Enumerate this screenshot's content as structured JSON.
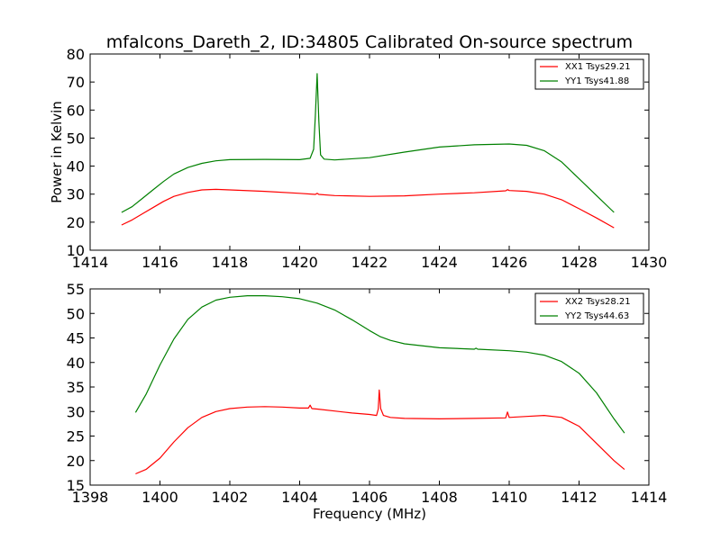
{
  "figure": {
    "title": "mfalcons_Dareth_2, ID:34805 Calibrated On-source spectrum"
  },
  "chart_data": [
    {
      "type": "line",
      "xlabel": "",
      "ylabel": "Power in Kelvin",
      "xlim": [
        1414,
        1430
      ],
      "ylim": [
        10,
        80
      ],
      "xticks": [
        "1414",
        "1416",
        "1418",
        "1420",
        "1422",
        "1424",
        "1426",
        "1428",
        "1430"
      ],
      "yticks": [
        "10",
        "20",
        "30",
        "40",
        "50",
        "60",
        "70",
        "80"
      ],
      "legend": "top-right",
      "grid": false,
      "series": [
        {
          "name": "XX1 Tsys29.21",
          "color": "#ff0000",
          "points": [
            [
              1414.9,
              19
            ],
            [
              1415.2,
              20.8
            ],
            [
              1415.5,
              23
            ],
            [
              1415.8,
              25.2
            ],
            [
              1416.1,
              27.4
            ],
            [
              1416.4,
              29.2
            ],
            [
              1416.8,
              30.6
            ],
            [
              1417.2,
              31.5
            ],
            [
              1417.6,
              31.7
            ],
            [
              1418,
              31.5
            ],
            [
              1419,
              31
            ],
            [
              1420,
              30.3
            ],
            [
              1420.45,
              29.9
            ],
            [
              1420.5,
              30.3
            ],
            [
              1420.55,
              29.9
            ],
            [
              1421,
              29.5
            ],
            [
              1422,
              29.2
            ],
            [
              1423,
              29.4
            ],
            [
              1424,
              30
            ],
            [
              1425,
              30.5
            ],
            [
              1425.9,
              31.2
            ],
            [
              1425.95,
              31.6
            ],
            [
              1426,
              31.3
            ],
            [
              1426.5,
              31
            ],
            [
              1427,
              30
            ],
            [
              1427.5,
              28
            ],
            [
              1428,
              24.8
            ],
            [
              1428.5,
              21.5
            ],
            [
              1429,
              18
            ]
          ]
        },
        {
          "name": "YY1 Tsys41.88",
          "color": "#008000",
          "points": [
            [
              1414.9,
              23.5
            ],
            [
              1415.2,
              25.5
            ],
            [
              1415.5,
              28.5
            ],
            [
              1415.8,
              31.5
            ],
            [
              1416.1,
              34.5
            ],
            [
              1416.4,
              37.2
            ],
            [
              1416.8,
              39.5
            ],
            [
              1417.2,
              41
            ],
            [
              1417.6,
              41.9
            ],
            [
              1418,
              42.3
            ],
            [
              1419,
              42.4
            ],
            [
              1420,
              42.3
            ],
            [
              1420.3,
              42.8
            ],
            [
              1420.4,
              46
            ],
            [
              1420.45,
              58
            ],
            [
              1420.5,
              73
            ],
            [
              1420.55,
              56
            ],
            [
              1420.6,
              44
            ],
            [
              1420.7,
              42.5
            ],
            [
              1421,
              42.2
            ],
            [
              1422,
              43
            ],
            [
              1423,
              45
            ],
            [
              1424,
              46.8
            ],
            [
              1425,
              47.6
            ],
            [
              1426,
              47.9
            ],
            [
              1426.5,
              47.4
            ],
            [
              1427,
              45.5
            ],
            [
              1427.5,
              41.5
            ],
            [
              1428,
              35.5
            ],
            [
              1428.5,
              29.5
            ],
            [
              1429,
              23.5
            ]
          ]
        }
      ]
    },
    {
      "type": "line",
      "xlabel": "Frequency (MHz)",
      "ylabel": "",
      "xlim": [
        1398,
        1414
      ],
      "ylim": [
        15,
        55
      ],
      "xticks": [
        "1398",
        "1400",
        "1402",
        "1404",
        "1406",
        "1408",
        "1410",
        "1412",
        "1414"
      ],
      "yticks": [
        "15",
        "20",
        "25",
        "30",
        "35",
        "40",
        "45",
        "50",
        "55"
      ],
      "legend": "top-right",
      "grid": false,
      "series": [
        {
          "name": "XX2 Tsys28.21",
          "color": "#ff0000",
          "points": [
            [
              1399.3,
              17.3
            ],
            [
              1399.6,
              18.2
            ],
            [
              1400,
              20.5
            ],
            [
              1400.4,
              23.8
            ],
            [
              1400.8,
              26.7
            ],
            [
              1401.2,
              28.8
            ],
            [
              1401.6,
              30
            ],
            [
              1402,
              30.6
            ],
            [
              1402.5,
              30.9
            ],
            [
              1403,
              31
            ],
            [
              1403.5,
              30.9
            ],
            [
              1404,
              30.7
            ],
            [
              1404.25,
              30.7
            ],
            [
              1404.3,
              31.3
            ],
            [
              1404.35,
              30.6
            ],
            [
              1404.5,
              30.5
            ],
            [
              1405,
              30.1
            ],
            [
              1405.5,
              29.7
            ],
            [
              1406,
              29.4
            ],
            [
              1406.2,
              29.2
            ],
            [
              1406.25,
              30.5
            ],
            [
              1406.28,
              34.4
            ],
            [
              1406.32,
              30.6
            ],
            [
              1406.4,
              29.2
            ],
            [
              1406.6,
              28.8
            ],
            [
              1407,
              28.6
            ],
            [
              1408,
              28.5
            ],
            [
              1409,
              28.6
            ],
            [
              1409.9,
              28.7
            ],
            [
              1409.95,
              29.9
            ],
            [
              1410,
              28.8
            ],
            [
              1410.5,
              29
            ],
            [
              1411,
              29.2
            ],
            [
              1411.5,
              28.8
            ],
            [
              1412,
              27
            ],
            [
              1412.5,
              23.5
            ],
            [
              1413,
              20
            ],
            [
              1413.3,
              18.2
            ]
          ]
        },
        {
          "name": "YY2 Tsys44.63",
          "color": "#008000",
          "points": [
            [
              1399.3,
              29.8
            ],
            [
              1399.6,
              33.5
            ],
            [
              1400,
              39.5
            ],
            [
              1400.4,
              44.8
            ],
            [
              1400.8,
              48.8
            ],
            [
              1401.2,
              51.3
            ],
            [
              1401.6,
              52.7
            ],
            [
              1402,
              53.3
            ],
            [
              1402.5,
              53.6
            ],
            [
              1403,
              53.6
            ],
            [
              1403.5,
              53.4
            ],
            [
              1404,
              53
            ],
            [
              1404.5,
              52.1
            ],
            [
              1405,
              50.7
            ],
            [
              1405.5,
              48.7
            ],
            [
              1406,
              46.5
            ],
            [
              1406.3,
              45.3
            ],
            [
              1406.6,
              44.5
            ],
            [
              1407,
              43.8
            ],
            [
              1408,
              43
            ],
            [
              1409,
              42.7
            ],
            [
              1409.05,
              42.9
            ],
            [
              1409.1,
              42.7
            ],
            [
              1410,
              42.4
            ],
            [
              1410.5,
              42.1
            ],
            [
              1411,
              41.5
            ],
            [
              1411.5,
              40.2
            ],
            [
              1412,
              37.8
            ],
            [
              1412.5,
              33.8
            ],
            [
              1413,
              28.5
            ],
            [
              1413.3,
              25.6
            ]
          ]
        }
      ]
    }
  ]
}
